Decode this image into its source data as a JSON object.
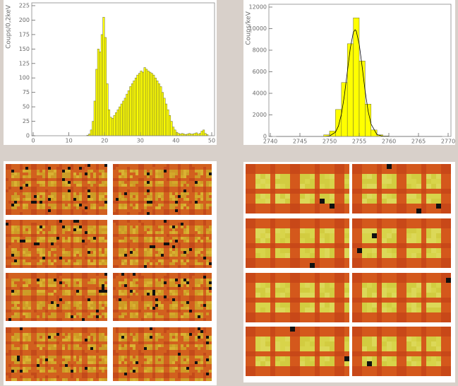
{
  "chart_data": [
    {
      "type": "histogram",
      "ylabel": "Coups/0,2keV",
      "bins": [
        15,
        15.5,
        16,
        16.5,
        17,
        17.5,
        18,
        18.5,
        19,
        19.5,
        20,
        20.5,
        21,
        21.5,
        22,
        22.5,
        23,
        23.5,
        24,
        24.5,
        25,
        25.5,
        26,
        26.5,
        27,
        27.5,
        28,
        28.5,
        29,
        29.5,
        30,
        30.5,
        31,
        31.5,
        32,
        32.5,
        33,
        33.5,
        34,
        34.5,
        35,
        35.5,
        36,
        36.5,
        37,
        37.5,
        38,
        38.5,
        39,
        39.5,
        40,
        40.5,
        41,
        41.5,
        42,
        42.5,
        43,
        43.5,
        44,
        44.5,
        45,
        45.5,
        46,
        46.5,
        47,
        47.5,
        48,
        48.5,
        49
      ],
      "counts": [
        1,
        3,
        10,
        25,
        60,
        115,
        150,
        145,
        175,
        205,
        170,
        90,
        45,
        32,
        30,
        35,
        40,
        45,
        50,
        55,
        60,
        65,
        72,
        78,
        85,
        90,
        95,
        100,
        105,
        108,
        112,
        110,
        118,
        115,
        112,
        110,
        108,
        105,
        100,
        95,
        90,
        85,
        75,
        65,
        55,
        45,
        35,
        25,
        15,
        10,
        6,
        4,
        3,
        4,
        3,
        2,
        3,
        4,
        3,
        3,
        4,
        5,
        3,
        4,
        8,
        10,
        4,
        2
      ],
      "color": "#ffff00",
      "xlim": [
        0,
        50
      ],
      "xticks": [
        0,
        10,
        20,
        30,
        40,
        50
      ],
      "ylim": [
        0,
        225
      ],
      "yticks": [
        0,
        25,
        50,
        75,
        100,
        125,
        150,
        175,
        200,
        225
      ]
    },
    {
      "type": "histogram",
      "ylabel": "Coups/keV",
      "bins": [
        2749,
        2750,
        2751,
        2752,
        2753,
        2754,
        2755,
        2756,
        2757,
        2758,
        2759,
        2760
      ],
      "counts": [
        150,
        500,
        2500,
        5000,
        8600,
        11000,
        7000,
        3000,
        600,
        150,
        50
      ],
      "color": "#ffff00",
      "lines": [
        {
          "color": "#000000",
          "x": [
            2741,
            2749,
            2750,
            2751,
            2751.5,
            2752,
            2752.5,
            2753,
            2753.5,
            2754,
            2754.3,
            2754.5,
            2755,
            2755.5,
            2756,
            2756.5,
            2757,
            2758,
            2759,
            2760,
            2769
          ],
          "values": [
            0,
            2,
            42,
            396,
            972,
            2070,
            3795,
            6005,
            8190,
            9640,
            9900,
            9780,
            8565,
            6465,
            4210,
            2365,
            1145,
            172,
            14,
            1,
            0
          ]
        }
      ],
      "xlim": [
        2740,
        2770
      ],
      "xticks": [
        2740,
        2745,
        2750,
        2755,
        2760,
        2765,
        2770
      ],
      "ylim": [
        0,
        12000
      ],
      "yticks": [
        0,
        2000,
        4000,
        6000,
        8000,
        10000,
        12000
      ]
    }
  ]
}
